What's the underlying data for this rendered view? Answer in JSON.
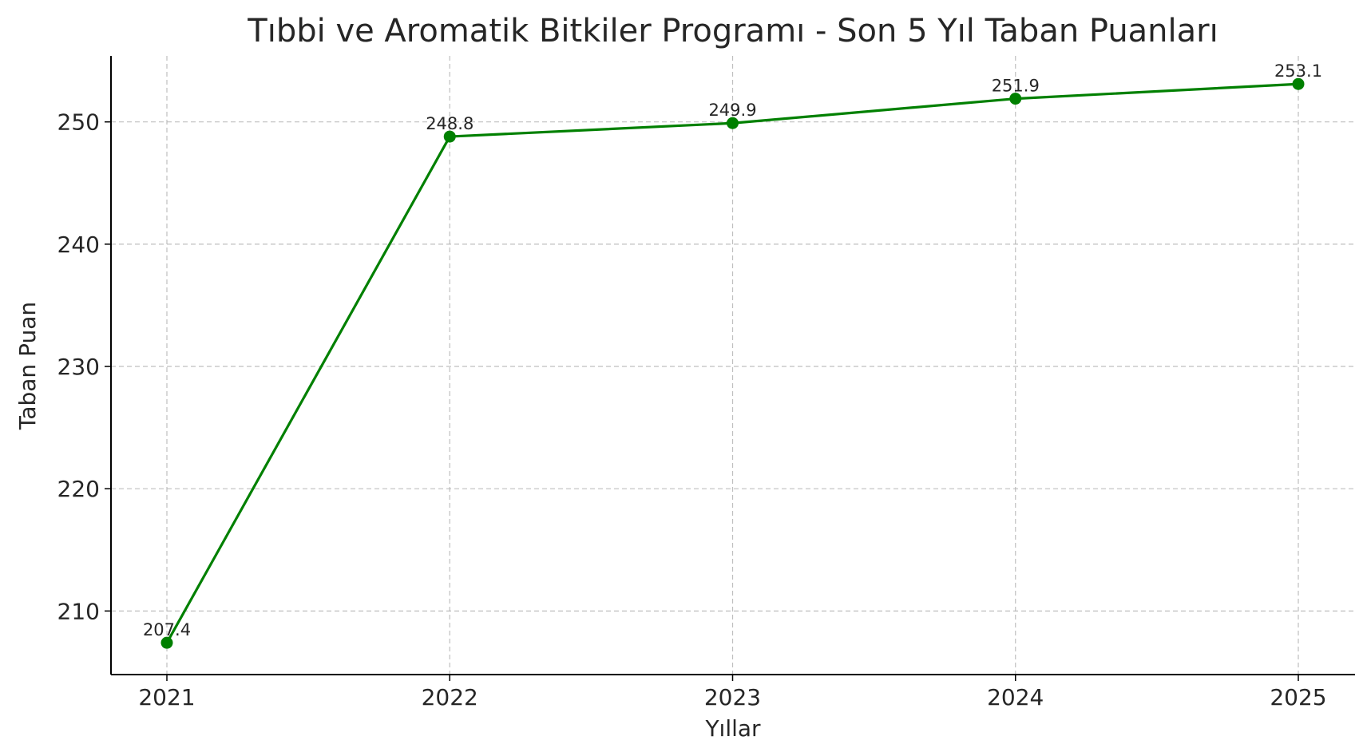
{
  "chart_data": {
    "type": "line",
    "title": "Tıbbi ve Aromatik Bitkiler Programı - Son 5 Yıl Taban Puanları",
    "xlabel": "Yıllar",
    "ylabel": "Taban Puan",
    "categories": [
      "2021",
      "2022",
      "2023",
      "2024",
      "2025"
    ],
    "series": [
      {
        "values": [
          207.4,
          248.8,
          249.9,
          251.9,
          253.1
        ],
        "labels": [
          "207.4",
          "248.8",
          "249.9",
          "251.9",
          "253.1"
        ],
        "color": "#008000"
      }
    ],
    "yticks": [
      210,
      220,
      230,
      240,
      250
    ],
    "ytick_labels": [
      "210",
      "220",
      "230",
      "240",
      "250"
    ],
    "ylim": [
      204.8,
      255.4
    ],
    "grid": true,
    "legend": "none"
  }
}
